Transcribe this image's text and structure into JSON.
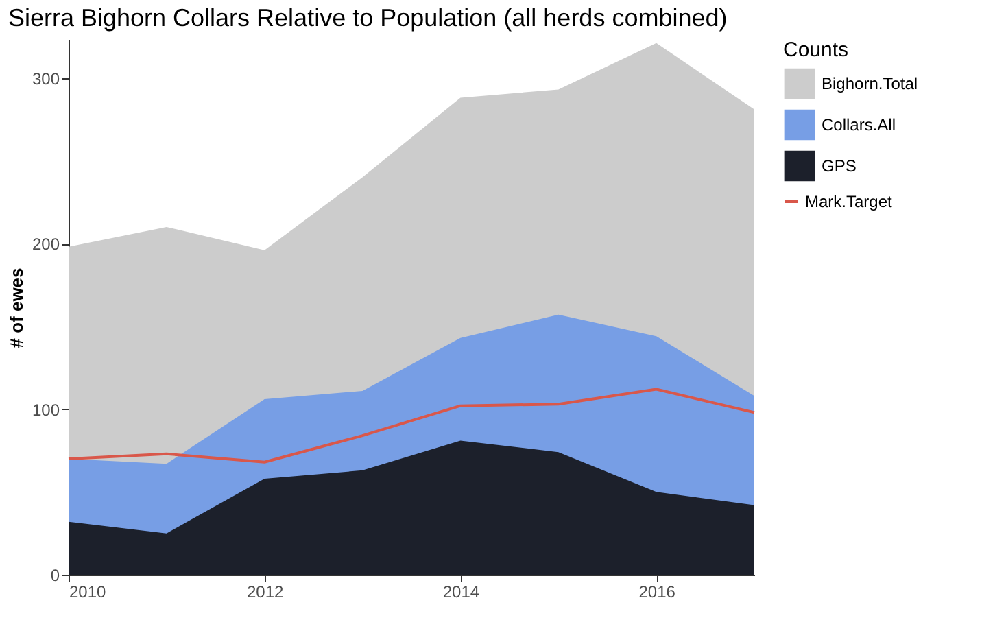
{
  "chart_data": {
    "type": "area",
    "title": "Sierra Bighorn Collars Relative to Population (all herds combined)",
    "ylabel": "# of ewes",
    "legend_title": "Counts",
    "x": [
      2010,
      2011,
      2012,
      2013,
      2014,
      2015,
      2016,
      2017
    ],
    "series": [
      {
        "name": "Bighorn.Total",
        "color": "#cccccc",
        "values": [
          198,
          210,
          196,
          240,
          288,
          293,
          321,
          281
        ]
      },
      {
        "name": "Collars.All",
        "color": "#779ee5",
        "values": [
          70,
          67,
          106,
          111,
          143,
          157,
          144,
          108
        ]
      },
      {
        "name": "GPS",
        "color": "#1c202b",
        "values": [
          32,
          25,
          58,
          63,
          81,
          74,
          50,
          42
        ]
      },
      {
        "name": "Mark.Target",
        "type": "line",
        "color": "#d9574a",
        "values": [
          70,
          73,
          68,
          84,
          102,
          103,
          112,
          98
        ]
      }
    ],
    "xlim": [
      2010,
      2017
    ],
    "ylim": [
      0,
      323
    ],
    "xticks": [
      2010,
      2012,
      2014,
      2016
    ],
    "yticks": [
      0,
      100,
      200,
      300
    ],
    "grid": false,
    "legend": "right"
  }
}
